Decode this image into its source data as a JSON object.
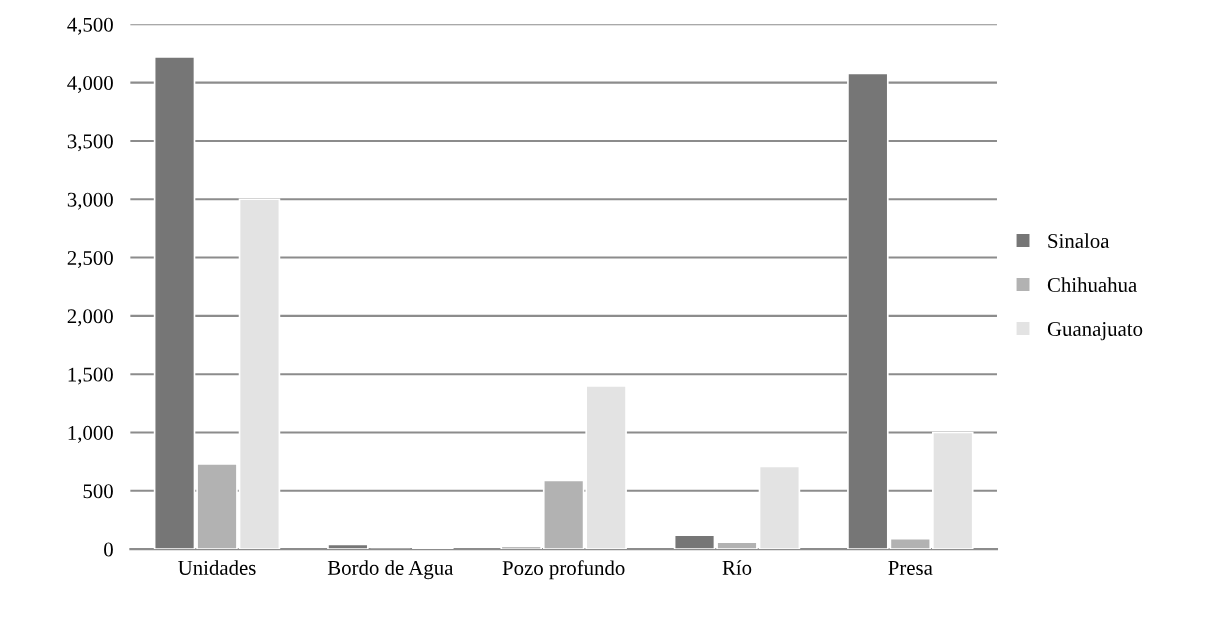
{
  "chart_data": {
    "type": "bar",
    "categories": [
      "Unidades",
      "Bordo de Agua",
      "Pozo profundo",
      "Río",
      "Presa"
    ],
    "series": [
      {
        "name": "Sinaloa",
        "color": "#767676",
        "values": [
          4220,
          40,
          20,
          120,
          4080
        ]
      },
      {
        "name": "Chihuahua",
        "color": "#b2b2b2",
        "values": [
          730,
          0,
          590,
          60,
          90
        ]
      },
      {
        "name": "Guanajuato",
        "color": "#e3e3e3",
        "values": [
          3000,
          10,
          1400,
          710,
          1000
        ]
      }
    ],
    "ylim": [
      0,
      4500
    ],
    "yticks": [
      {
        "value": 0,
        "label": "0"
      },
      {
        "value": 500,
        "label": "500"
      },
      {
        "value": 1000,
        "label": "1,000"
      },
      {
        "value": 1500,
        "label": "1,500"
      },
      {
        "value": 2000,
        "label": "2,000"
      },
      {
        "value": 2500,
        "label": "2,500"
      },
      {
        "value": 3000,
        "label": "3,000"
      },
      {
        "value": 3500,
        "label": "3,500"
      },
      {
        "value": 4000,
        "label": "4,000"
      },
      {
        "value": 4500,
        "label": "4,500"
      }
    ],
    "grid": "y",
    "legend": "right"
  }
}
